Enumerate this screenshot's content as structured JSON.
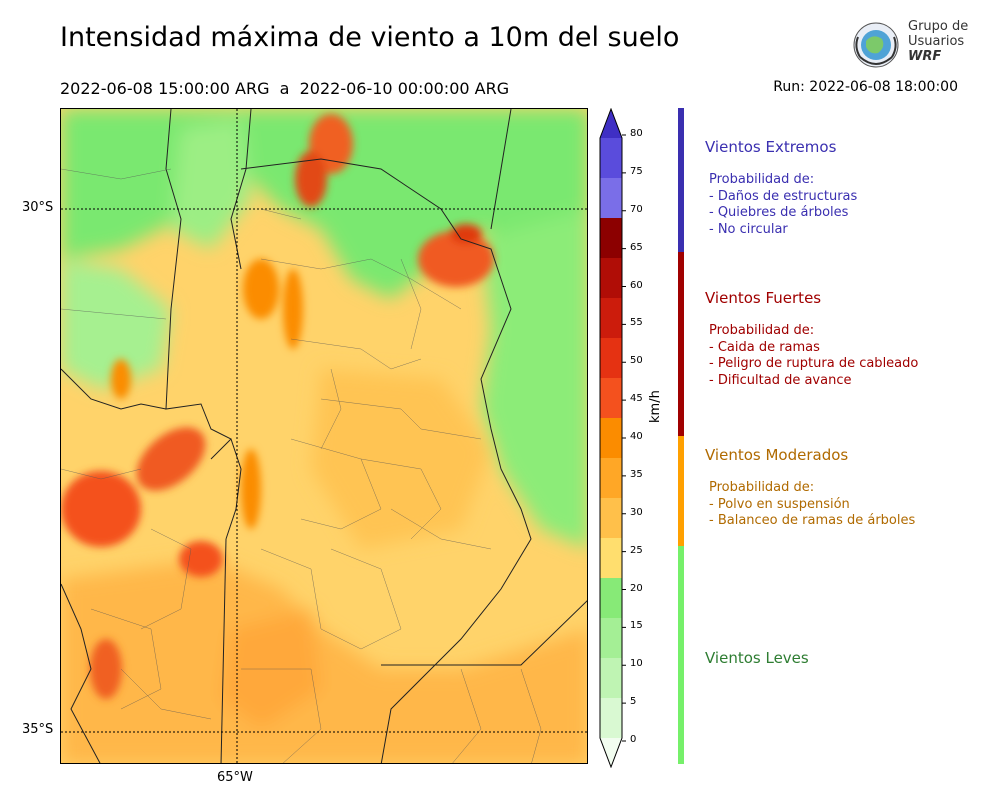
{
  "title": "Intensidad máxima de viento a 10m del suelo",
  "period": "2022-06-08 15:00:00 ARG  a  2022-06-10 00:00:00 ARG",
  "run": "Run: 2022-06-08 18:00:00",
  "logo": {
    "line1": "Grupo de",
    "line2": "Usuarios",
    "line3": "WRF"
  },
  "map": {
    "lat_labels": [
      "30°S",
      "35°S"
    ],
    "lon_labels": [
      "65°W"
    ]
  },
  "colorbar": {
    "unit": "km/h",
    "ticks": [
      "0",
      "5",
      "10",
      "15",
      "20",
      "25",
      "30",
      "35",
      "40",
      "45",
      "50",
      "55",
      "60",
      "65",
      "70",
      "75",
      "80"
    ],
    "colors": [
      "#f2fdf0",
      "#d9f9d2",
      "#bff4b3",
      "#a4ef95",
      "#87ea77",
      "#ffde6e",
      "#ffc04a",
      "#ffa726",
      "#fb8c00",
      "#f4511e",
      "#e53212",
      "#cc1c0c",
      "#b00d06",
      "#8c0000",
      "#7a6ee8",
      "#5a4cdc",
      "#3f2fc4"
    ]
  },
  "categories": [
    {
      "title": "Vientos Extremos",
      "color": "#3a2fb0",
      "intro": "Probabilidad de:",
      "items": [
        "- Daños de estructuras",
        "- Quiebres de árboles",
        "- No circular"
      ]
    },
    {
      "title": "Vientos Fuertes",
      "color": "#a00000",
      "intro": "Probabilidad de:",
      "items": [
        "- Caida de ramas",
        "- Peligro de ruptura de cableado",
        "- Dificultad de avance"
      ]
    },
    {
      "title": "Vientos Moderados",
      "color": "#b06a00",
      "intro": "Probabilidad de:",
      "items": [
        "- Polvo en suspensión",
        "- Balanceo de ramas de árboles"
      ]
    },
    {
      "title": "Vientos Leves",
      "color": "#2e7d32",
      "intro": "",
      "items": []
    }
  ],
  "category_bar_colors": [
    "#3a2fb0",
    "#a00000",
    "#ffa000",
    "#76f06a"
  ]
}
